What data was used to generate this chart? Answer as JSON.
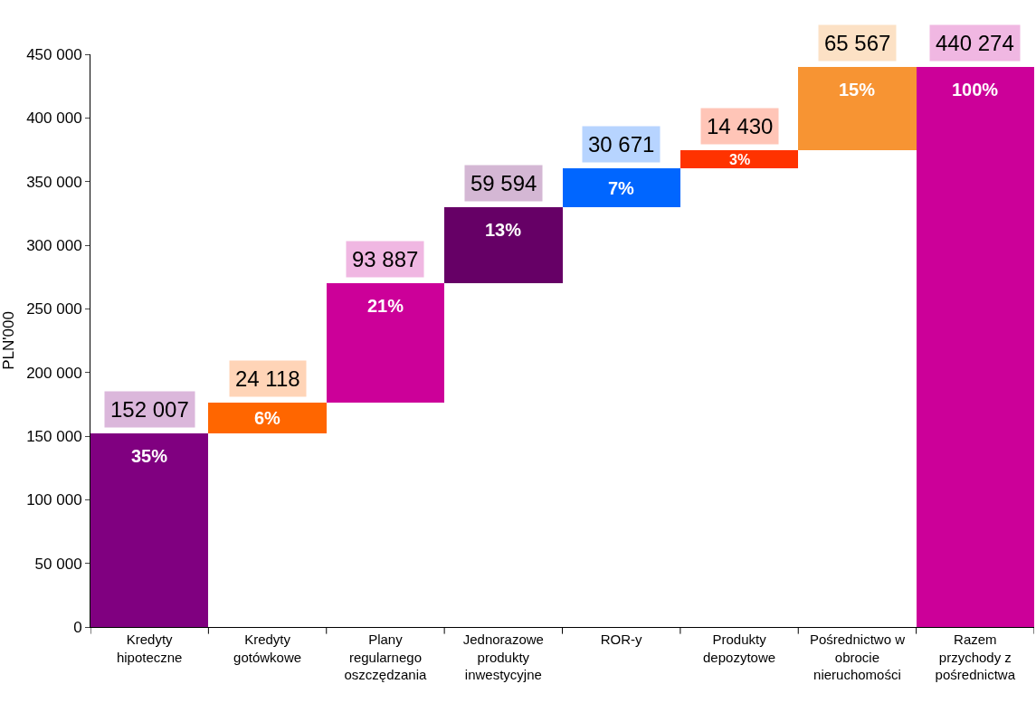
{
  "chart_data": {
    "type": "bar",
    "ylabel": "PLN'000",
    "categories": [
      "Kredyty hipoteczne",
      "Kredyty gotówkowe",
      "Plany regularnego oszczędzania",
      "Jednorazowe produkty inwestycyjne",
      "ROR-y",
      "Produkty depozytowe",
      "Pośrednictwo w obrocie nieruchomości",
      "Razem przychody z pośrednictwa"
    ],
    "values": [
      152007,
      24118,
      93887,
      59594,
      30671,
      14430,
      65567,
      440274
    ],
    "base": [
      0,
      152007,
      176125,
      270012,
      329606,
      360277,
      374707,
      0
    ],
    "colors": [
      "#800080",
      "#ff6600",
      "#cc0099",
      "#660066",
      "#0066ff",
      "#ff3300",
      "#f79433",
      "#cc0099"
    ],
    "data_labels": true,
    "value_labels": [
      "152 007",
      "24 118",
      "93 887",
      "59 594",
      "30 671",
      "14 430",
      "65 567",
      "440 274"
    ],
    "annotations": [
      "35%",
      "6%",
      "21%",
      "13%",
      "7%",
      "3%",
      "15%",
      "100%"
    ],
    "ylim": [
      0,
      450000
    ],
    "yticks": [
      0,
      {
        "value": 50000,
        "label": "50 000"
      },
      {
        "value": 100000,
        "label": "100 000"
      },
      {
        "value": 150000,
        "label": "150 000"
      },
      {
        "value": 200000,
        "label": "200 000"
      },
      {
        "value": 250000,
        "label": "250 000"
      },
      {
        "value": 300000,
        "label": "300 000"
      },
      {
        "value": 350000,
        "label": "350 000"
      },
      {
        "value": 400000,
        "label": "400 000"
      },
      {
        "value": 450000,
        "label": "450 000"
      }
    ],
    "legend": false
  }
}
